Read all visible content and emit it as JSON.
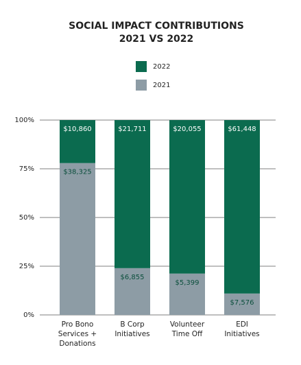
{
  "chart_data": {
    "type": "bar",
    "stacking": "percent",
    "title": "SOCIAL IMPACT CONTRIBUTIONS",
    "subtitle": "2021 VS 2022",
    "categories": [
      "Pro Bono Services + Donations",
      "B Corp Initiatives",
      "Volunteer Time Off",
      "EDI Initiatives"
    ],
    "series": [
      {
        "name": "2021",
        "color": "#8d9ca5",
        "label_color": "#0b4f3c",
        "values": [
          38325,
          6855,
          5399,
          7576
        ],
        "value_labels": [
          "$38,325",
          "$6,855",
          "$5,399",
          "$7,576"
        ]
      },
      {
        "name": "2022",
        "color": "#0b6b4f",
        "label_color": "#ffffff",
        "values": [
          10860,
          21711,
          20055,
          61448
        ],
        "value_labels": [
          "$10,860",
          "$21,711",
          "$20,055",
          "$61,448"
        ]
      }
    ],
    "ylim": [
      0,
      100
    ],
    "yticks": [
      {
        "value": 0,
        "label": "0%"
      },
      {
        "value": 25,
        "label": "25%"
      },
      {
        "value": 50,
        "label": "50%"
      },
      {
        "value": 75,
        "label": "75%"
      },
      {
        "value": 100,
        "label": "100%"
      }
    ],
    "grid": true
  }
}
